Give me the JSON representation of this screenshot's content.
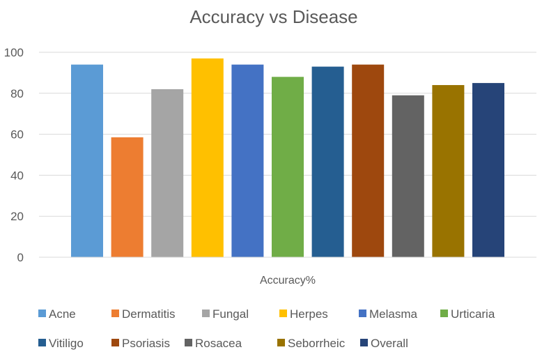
{
  "chart_data": {
    "type": "bar",
    "title": "Accuracy vs Disease",
    "xlabel": "Accuracy%",
    "ylabel": "",
    "ylim": [
      0,
      100
    ],
    "yticks": [
      "0",
      "20",
      "40",
      "60",
      "80",
      "100"
    ],
    "grid": true,
    "legend_position": "bottom",
    "series": [
      {
        "name": "Acne",
        "value": 94,
        "color": "#5B9BD5"
      },
      {
        "name": "Dermatitis",
        "value": 58.5,
        "color": "#ED7D31"
      },
      {
        "name": "Fungal",
        "value": 82,
        "color": "#A5A5A5"
      },
      {
        "name": "Herpes",
        "value": 97,
        "color": "#FFC000"
      },
      {
        "name": "Melasma",
        "value": 94,
        "color": "#4472C4"
      },
      {
        "name": "Urticaria",
        "value": 88,
        "color": "#70AD47"
      },
      {
        "name": "Vitiligo",
        "value": 93,
        "color": "#255E91"
      },
      {
        "name": "Psoriasis",
        "value": 94,
        "color": "#9E480E"
      },
      {
        "name": "Rosacea",
        "value": 79,
        "color": "#636363"
      },
      {
        "name": "Seborrheic",
        "value": 84,
        "color": "#997300"
      },
      {
        "name": "Overall",
        "value": 85,
        "color": "#264478"
      }
    ]
  }
}
